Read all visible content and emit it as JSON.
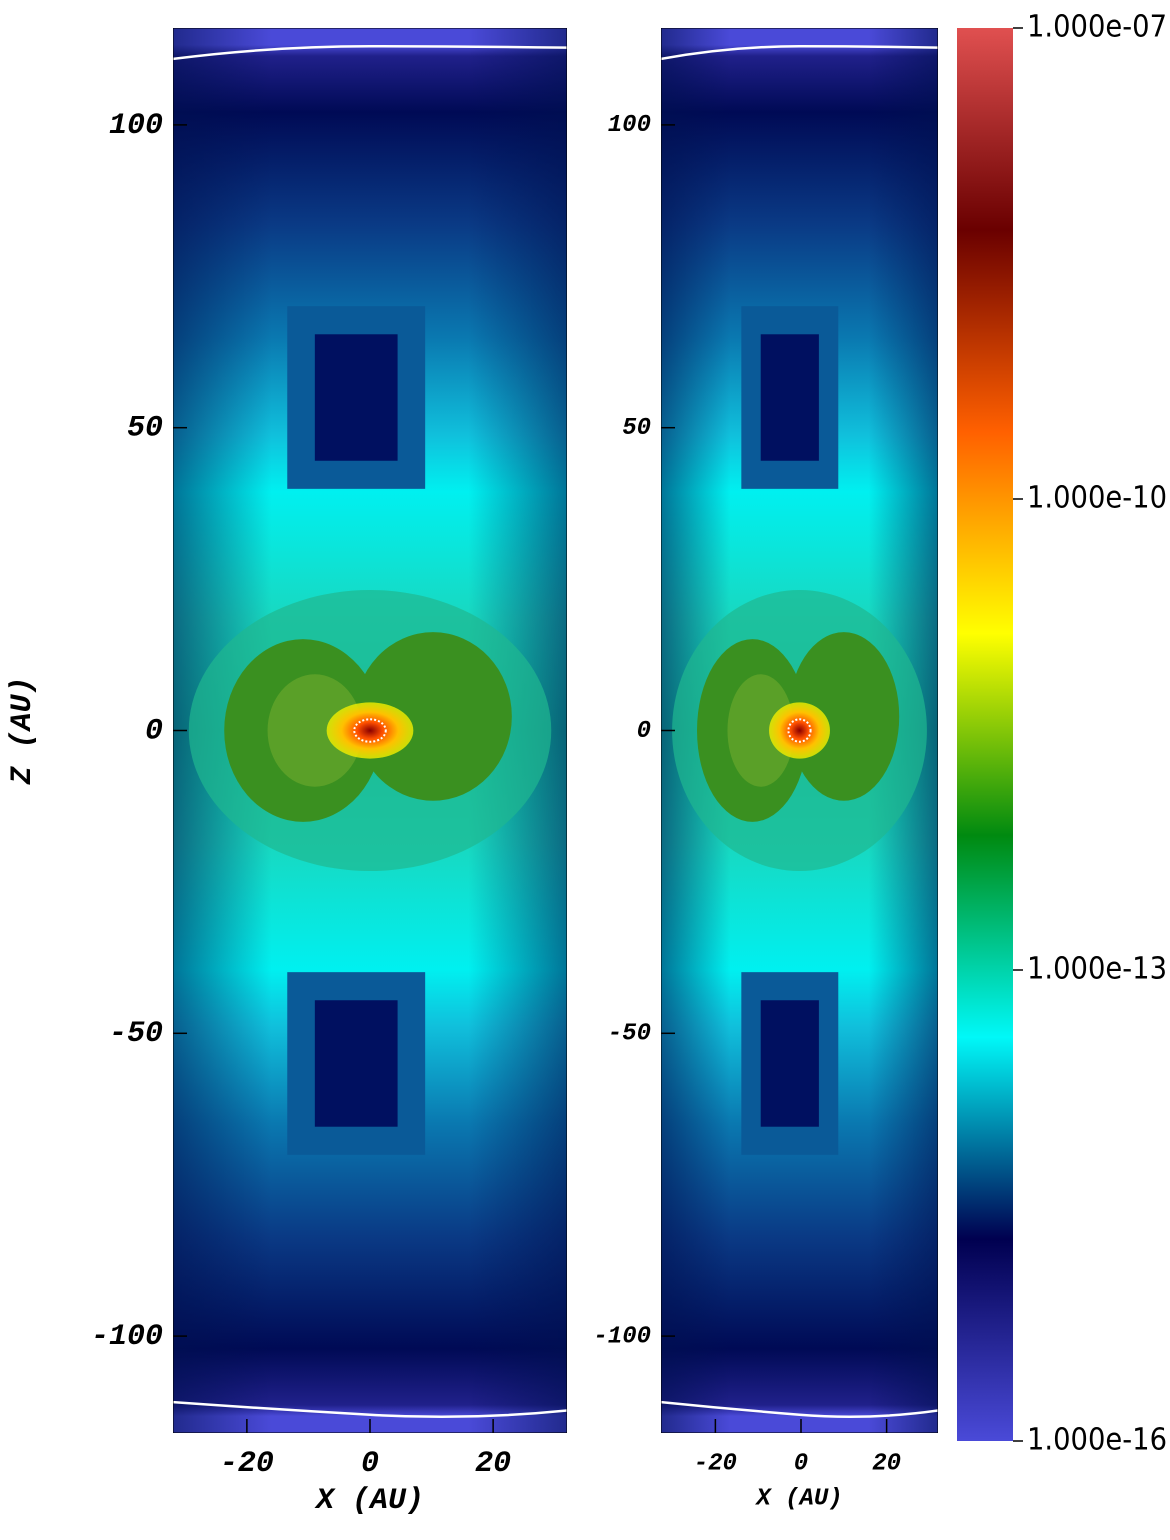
{
  "chart_data": [
    {
      "type": "heatmap",
      "xlabel": "X (AU)",
      "ylabel": "Z (AU)",
      "xlim": [
        -32,
        32
      ],
      "ylim": [
        -116,
        116
      ],
      "xticks": [
        -20,
        0,
        20
      ],
      "yticks": [
        -100,
        -50,
        0,
        50,
        100
      ]
    },
    {
      "type": "heatmap",
      "xlabel": "X (AU)",
      "xlim": [
        -32.7,
        32
      ],
      "ylim": [
        -116,
        116
      ],
      "xticks": [
        -20,
        0,
        20
      ],
      "yticks": [
        -100,
        -50,
        0,
        50,
        100
      ]
    },
    {
      "type": "colorbar",
      "log_scale": true,
      "clim": [
        1e-16,
        1e-07
      ],
      "cticks": [
        {
          "value": 1e-07,
          "label": "1.000e-07"
        },
        {
          "value": 1e-10,
          "label": "1.000e-10"
        },
        {
          "value": 1e-13,
          "label": "1.000e-13"
        },
        {
          "value": 1e-16,
          "label": "1.000e-16"
        }
      ],
      "colors": [
        "#4a4ad8",
        "#000050",
        "#00f8f8",
        "#008a10",
        "#ffff00",
        "#ff6000",
        "#6a0000",
        "#e05050"
      ]
    }
  ]
}
